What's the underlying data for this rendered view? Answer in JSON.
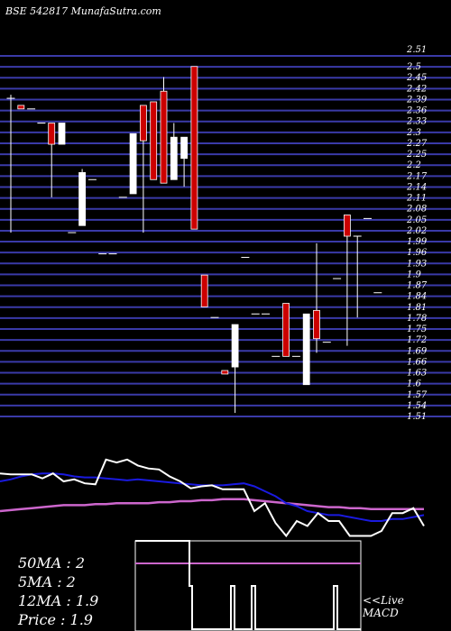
{
  "header": {
    "title": "BSE 542817 MunafaSutra.com"
  },
  "chart_data": {
    "type": "candlestick",
    "y_ticks": [
      "2.51",
      "2.5",
      "2.45",
      "2.42",
      "2.39",
      "2.36",
      "2.33",
      "2.3",
      "2.27",
      "2.25",
      "2.2",
      "2.17",
      "2.14",
      "2.11",
      "2.08",
      "2.05",
      "2.02",
      "1.99",
      "1.96",
      "1.93",
      "1.9",
      "1.87",
      "1.84",
      "1.81",
      "1.78",
      "1.75",
      "1.72",
      "1.69",
      "1.66",
      "1.63",
      "1.6",
      "1.57",
      "1.54",
      "1.51"
    ],
    "ylim": [
      1.5,
      2.52
    ],
    "candles": [
      {
        "o": 2.4,
        "h": 2.41,
        "l": 2.02,
        "c": 2.4
      },
      {
        "o": 2.38,
        "h": 2.38,
        "l": 2.38,
        "c": 2.37
      },
      {
        "o": 2.37,
        "h": 2.37,
        "l": 2.37,
        "c": 2.37
      },
      {
        "o": 2.33,
        "h": 2.33,
        "l": 2.33,
        "c": 2.33
      },
      {
        "o": 2.33,
        "h": 2.33,
        "l": 2.12,
        "c": 2.27
      },
      {
        "o": 2.27,
        "h": 2.33,
        "l": 2.27,
        "c": 2.33
      },
      {
        "o": 2.02,
        "h": 2.02,
        "l": 2.02,
        "c": 2.02
      },
      {
        "o": 2.04,
        "h": 2.2,
        "l": 2.04,
        "c": 2.19
      },
      {
        "o": 2.17,
        "h": 2.17,
        "l": 2.17,
        "c": 2.17
      },
      {
        "o": 1.96,
        "h": 1.96,
        "l": 1.96,
        "c": 1.96
      },
      {
        "o": 1.96,
        "h": 1.96,
        "l": 1.96,
        "c": 1.96
      },
      {
        "o": 2.12,
        "h": 2.12,
        "l": 2.12,
        "c": 2.12
      },
      {
        "o": 2.13,
        "h": 2.3,
        "l": 2.13,
        "c": 2.3
      },
      {
        "o": 2.38,
        "h": 2.38,
        "l": 2.02,
        "c": 2.28
      },
      {
        "o": 2.39,
        "h": 2.39,
        "l": 2.17,
        "c": 2.17
      },
      {
        "o": 2.42,
        "h": 2.46,
        "l": 2.16,
        "c": 2.16
      },
      {
        "o": 2.17,
        "h": 2.33,
        "l": 2.17,
        "c": 2.29
      },
      {
        "o": 2.23,
        "h": 2.29,
        "l": 2.15,
        "c": 2.29
      },
      {
        "o": 2.49,
        "h": 2.49,
        "l": 2.03,
        "c": 2.03
      },
      {
        "o": 1.9,
        "h": 1.9,
        "l": 1.81,
        "c": 1.81
      },
      {
        "o": 1.78,
        "h": 1.78,
        "l": 1.78,
        "c": 1.78
      },
      {
        "o": 1.63,
        "h": 1.63,
        "l": 1.62,
        "c": 1.62
      },
      {
        "o": 1.64,
        "h": 1.76,
        "l": 1.51,
        "c": 1.76
      },
      {
        "o": 1.95,
        "h": 1.95,
        "l": 1.95,
        "c": 1.95
      },
      {
        "o": 1.79,
        "h": 1.79,
        "l": 1.79,
        "c": 1.79
      },
      {
        "o": 1.79,
        "h": 1.79,
        "l": 1.79,
        "c": 1.79
      },
      {
        "o": 1.67,
        "h": 1.67,
        "l": 1.67,
        "c": 1.67
      },
      {
        "o": 1.82,
        "h": 1.82,
        "l": 1.67,
        "c": 1.67
      },
      {
        "o": 1.67,
        "h": 1.67,
        "l": 1.67,
        "c": 1.67
      },
      {
        "o": 1.59,
        "h": 1.79,
        "l": 1.59,
        "c": 1.79
      },
      {
        "o": 1.8,
        "h": 1.99,
        "l": 1.68,
        "c": 1.72
      },
      {
        "o": 1.71,
        "h": 1.71,
        "l": 1.71,
        "c": 1.71
      },
      {
        "o": 1.89,
        "h": 1.89,
        "l": 1.89,
        "c": 1.89
      },
      {
        "o": 2.07,
        "h": 2.07,
        "l": 1.7,
        "c": 2.01
      },
      {
        "o": 2.01,
        "h": 2.01,
        "l": 1.78,
        "c": 2.01
      },
      {
        "o": 2.06,
        "h": 2.06,
        "l": 2.06,
        "c": 2.06
      },
      {
        "o": 1.85,
        "h": 1.85,
        "l": 1.85,
        "c": 1.85
      }
    ],
    "indicators": {
      "price_line": [
        68,
        67,
        67,
        67,
        63,
        68,
        60,
        62,
        58,
        57,
        82,
        79,
        82,
        76,
        73,
        72,
        65,
        60,
        53,
        55,
        56,
        52,
        52,
        52,
        30,
        38,
        18,
        5,
        20,
        15,
        28,
        20,
        20,
        5,
        5,
        5,
        10,
        28,
        28,
        33,
        15
      ],
      "ma_short": [
        60,
        62,
        65,
        67,
        68,
        68,
        67,
        65,
        64,
        64,
        63,
        62,
        61,
        62,
        61,
        60,
        59,
        58,
        57,
        56,
        56,
        56,
        57,
        58,
        55,
        50,
        45,
        38,
        35,
        30,
        28,
        26,
        26,
        24,
        22,
        20,
        20,
        22,
        22,
        24,
        26
      ],
      "ma_long": [
        30,
        31,
        32,
        33,
        34,
        35,
        36,
        36,
        36,
        37,
        37,
        38,
        38,
        38,
        38,
        39,
        39,
        40,
        40,
        41,
        41,
        42,
        42,
        42,
        41,
        40,
        39,
        38,
        37,
        36,
        35,
        34,
        34,
        33,
        33,
        32,
        32,
        32,
        32,
        32,
        32
      ],
      "macd_levels": [
        1,
        0.75
      ]
    },
    "legend": {
      "ma50": "50MA : 2",
      "ma5": "5MA : 2",
      "ma12": "12MA : 1.9",
      "price": "Price   : 1.9"
    },
    "macd_label": "<<Live MACD",
    "colors": {
      "background": "#000000",
      "grid": "#3a3aa8",
      "bear": "#cc0000",
      "bull": "#ffffff",
      "ma_short": "#1a1ae0",
      "ma_long": "#cc66cc",
      "price_line": "#ffffff"
    }
  }
}
